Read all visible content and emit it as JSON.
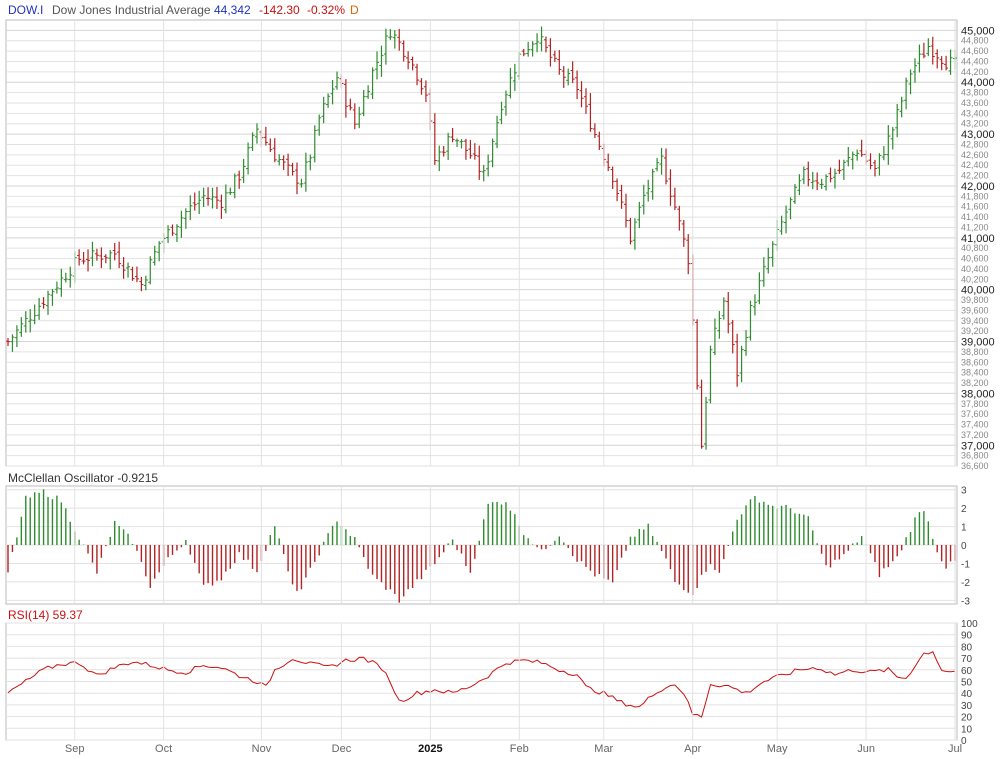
{
  "header": {
    "symbol": "DOW.I",
    "name": "Dow Jones Industrial Average",
    "last": "44,342",
    "change": "-142.30",
    "change_pct": "-0.32%",
    "interval": "D"
  },
  "colors": {
    "up": "#2e8b2e",
    "down": "#b22222",
    "symbol": "#2233bb",
    "grid": "#e2e2e2",
    "border": "#bbbbbb",
    "rsi_line": "#cc1111",
    "rsi_label": "#cc1111",
    "text": "#333333"
  },
  "oscillator_label": "McClellan Oscillator -0.9215",
  "rsi_label": "RSI(14) 59.37",
  "chart_data": [
    {
      "type": "ohlc",
      "title": "Dow Jones Industrial Average",
      "y_range": [
        36600,
        45200
      ],
      "y_ticks_major": [
        "45,000",
        "44,000",
        "43,000",
        "42,000",
        "41,000",
        "40,000",
        "39,000",
        "38,000",
        "37,000"
      ],
      "y_ticks_minor": [
        "44,800",
        "44,600",
        "44,400",
        "44,200",
        "43,800",
        "43,600",
        "43,400",
        "43,200",
        "42,800",
        "42,600",
        "42,400",
        "42,200",
        "41,800",
        "41,600",
        "41,400",
        "41,200",
        "40,800",
        "40,600",
        "40,400",
        "40,200",
        "39,800",
        "39,600",
        "39,400",
        "39,200",
        "38,800",
        "38,600",
        "38,400",
        "38,200",
        "37,800",
        "37,600",
        "37,400",
        "37,200",
        "36,800",
        "36,600"
      ],
      "x_labels": [
        "Sep",
        "Oct",
        "Nov",
        "Dec",
        "2025",
        "Feb",
        "Mar",
        "Apr",
        "May",
        "Jun",
        "Jul"
      ],
      "close_path": [
        [
          0,
          39000
        ],
        [
          8,
          39800
        ],
        [
          16,
          40600
        ],
        [
          24,
          40700
        ],
        [
          30,
          40100
        ],
        [
          34,
          40900
        ],
        [
          40,
          41500
        ],
        [
          44,
          41800
        ],
        [
          48,
          41700
        ],
        [
          52,
          42200
        ],
        [
          56,
          43100
        ],
        [
          60,
          42600
        ],
        [
          64,
          42200
        ],
        [
          66,
          42100
        ],
        [
          68,
          42600
        ],
        [
          70,
          43300
        ],
        [
          74,
          44100
        ],
        [
          78,
          43200
        ],
        [
          82,
          44200
        ],
        [
          86,
          45000
        ],
        [
          90,
          44500
        ],
        [
          94,
          43800
        ],
        [
          96,
          42500
        ],
        [
          100,
          43000
        ],
        [
          104,
          42600
        ],
        [
          107,
          42200
        ],
        [
          111,
          43600
        ],
        [
          115,
          44500
        ],
        [
          119,
          44900
        ],
        [
          124,
          44200
        ],
        [
          128,
          43900
        ],
        [
          132,
          43000
        ],
        [
          136,
          42200
        ],
        [
          140,
          41000
        ],
        [
          143,
          41800
        ],
        [
          147,
          42500
        ],
        [
          150,
          41600
        ],
        [
          153,
          40600
        ],
        [
          155,
          38200
        ],
        [
          156,
          37000
        ],
        [
          158,
          38800
        ],
        [
          161,
          39800
        ],
        [
          164,
          38400
        ],
        [
          167,
          39600
        ],
        [
          171,
          40600
        ],
        [
          175,
          41500
        ],
        [
          179,
          42200
        ],
        [
          183,
          42100
        ],
        [
          187,
          42300
        ],
        [
          191,
          42700
        ],
        [
          195,
          42300
        ],
        [
          199,
          43100
        ],
        [
          203,
          44200
        ],
        [
          207,
          44700
        ],
        [
          211,
          44400
        ],
        [
          213,
          44342
        ]
      ]
    },
    {
      "type": "bar",
      "title": "McClellan Oscillator",
      "value": -0.9215,
      "y_range": [
        -3.2,
        3.2
      ],
      "y_ticks": [
        "3",
        "2",
        "1",
        "0",
        "-1",
        "-2",
        "-3"
      ],
      "profile": [
        [
          0,
          -1.5
        ],
        [
          4,
          2.5
        ],
        [
          8,
          2.9
        ],
        [
          12,
          2.4
        ],
        [
          16,
          0.4
        ],
        [
          20,
          -1.5
        ],
        [
          24,
          1.2
        ],
        [
          28,
          0.2
        ],
        [
          32,
          -2.2
        ],
        [
          36,
          -0.8
        ],
        [
          40,
          0.3
        ],
        [
          44,
          -2.3
        ],
        [
          48,
          -1.8
        ],
        [
          52,
          -0.5
        ],
        [
          56,
          -1.4
        ],
        [
          60,
          1.1
        ],
        [
          64,
          -2.3
        ],
        [
          66,
          -2.4
        ],
        [
          70,
          -0.4
        ],
        [
          74,
          1.4
        ],
        [
          78,
          0.3
        ],
        [
          82,
          -1.7
        ],
        [
          86,
          -2.5
        ],
        [
          88,
          -3.0
        ],
        [
          92,
          -2.0
        ],
        [
          96,
          -1.0
        ],
        [
          100,
          0.3
        ],
        [
          104,
          -1.5
        ],
        [
          108,
          2.2
        ],
        [
          112,
          2.4
        ],
        [
          116,
          0.7
        ],
        [
          120,
          -0.4
        ],
        [
          124,
          0.6
        ],
        [
          128,
          -0.8
        ],
        [
          132,
          -1.6
        ],
        [
          136,
          -2.1
        ],
        [
          140,
          0.4
        ],
        [
          144,
          1.0
        ],
        [
          148,
          -0.8
        ],
        [
          150,
          -2.0
        ],
        [
          154,
          -2.6
        ],
        [
          158,
          -0.9
        ],
        [
          160,
          -1.6
        ],
        [
          164,
          1.5
        ],
        [
          168,
          2.6
        ],
        [
          172,
          2.1
        ],
        [
          176,
          2.0
        ],
        [
          180,
          1.4
        ],
        [
          184,
          -1.2
        ],
        [
          188,
          -0.6
        ],
        [
          192,
          0.5
        ],
        [
          196,
          -1.6
        ],
        [
          200,
          -0.7
        ],
        [
          204,
          1.4
        ],
        [
          206,
          2.0
        ],
        [
          209,
          -0.3
        ],
        [
          211,
          -1.2
        ],
        [
          213,
          -0.9215
        ]
      ]
    },
    {
      "type": "line",
      "title": "RSI(14)",
      "value": 59.37,
      "y_range": [
        0,
        100
      ],
      "y_ticks": [
        "100",
        "90",
        "80",
        "70",
        "60",
        "50",
        "40",
        "30",
        "20",
        "10",
        "0"
      ],
      "profile": [
        [
          0,
          40
        ],
        [
          4,
          50
        ],
        [
          8,
          60
        ],
        [
          12,
          65
        ],
        [
          16,
          66
        ],
        [
          20,
          55
        ],
        [
          24,
          62
        ],
        [
          28,
          67
        ],
        [
          32,
          64
        ],
        [
          36,
          60
        ],
        [
          40,
          58
        ],
        [
          44,
          64
        ],
        [
          48,
          62
        ],
        [
          52,
          55
        ],
        [
          56,
          50
        ],
        [
          58,
          45
        ],
        [
          60,
          60
        ],
        [
          64,
          70
        ],
        [
          68,
          65
        ],
        [
          72,
          62
        ],
        [
          76,
          68
        ],
        [
          80,
          70
        ],
        [
          84,
          62
        ],
        [
          86,
          50
        ],
        [
          88,
          33
        ],
        [
          92,
          40
        ],
        [
          96,
          43
        ],
        [
          100,
          40
        ],
        [
          104,
          46
        ],
        [
          108,
          55
        ],
        [
          112,
          66
        ],
        [
          116,
          68
        ],
        [
          120,
          66
        ],
        [
          124,
          60
        ],
        [
          128,
          56
        ],
        [
          130,
          45
        ],
        [
          134,
          40
        ],
        [
          138,
          32
        ],
        [
          142,
          28
        ],
        [
          146,
          42
        ],
        [
          150,
          48
        ],
        [
          152,
          40
        ],
        [
          154,
          22
        ],
        [
          156,
          20
        ],
        [
          158,
          48
        ],
        [
          162,
          46
        ],
        [
          166,
          40
        ],
        [
          170,
          50
        ],
        [
          174,
          55
        ],
        [
          178,
          60
        ],
        [
          182,
          62
        ],
        [
          186,
          56
        ],
        [
          190,
          60
        ],
        [
          194,
          58
        ],
        [
          198,
          60
        ],
        [
          200,
          54
        ],
        [
          202,
          53
        ],
        [
          206,
          74
        ],
        [
          208,
          76
        ],
        [
          210,
          60
        ],
        [
          212,
          58
        ],
        [
          213,
          59.37
        ]
      ]
    }
  ]
}
